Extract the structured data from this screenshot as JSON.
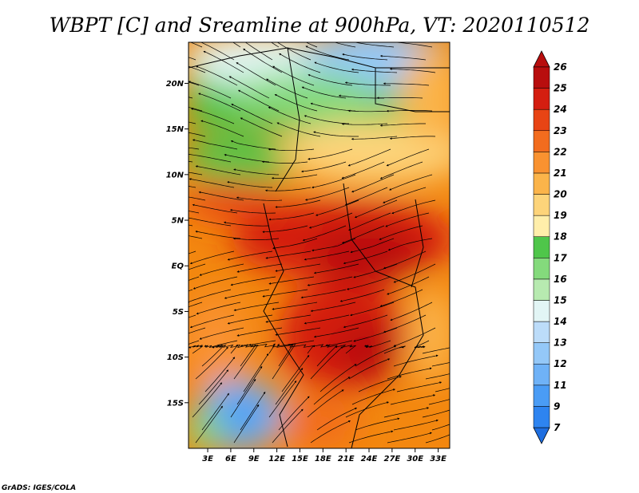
{
  "title": "WBPT [C] and Sreamline at 900hPa, VT: 2020110512",
  "credit": "GrADS: IGES/COLA",
  "map": {
    "lat_labels": [
      "20N",
      "15N",
      "10N",
      "5N",
      "EQ",
      "5S",
      "10S",
      "15S"
    ],
    "lat_values": [
      20,
      15,
      10,
      5,
      0,
      -5,
      -10,
      -15
    ],
    "lon_labels": [
      "3E",
      "6E",
      "9E",
      "12E",
      "15E",
      "18E",
      "21E",
      "24E",
      "27E",
      "30E",
      "33E"
    ],
    "lon_values": [
      3,
      6,
      9,
      12,
      15,
      18,
      21,
      24,
      27,
      30,
      33
    ],
    "lon_range": [
      0.5,
      34.5
    ],
    "lat_range": [
      -20,
      24.5
    ]
  },
  "colorbar": {
    "labels": [
      "7",
      "9",
      "11",
      "12",
      "13",
      "14",
      "15",
      "16",
      "17",
      "18",
      "19",
      "20",
      "21",
      "22",
      "23",
      "24",
      "25",
      "26"
    ],
    "colors": [
      "#1e6ee0",
      "#2e84f0",
      "#4a9cf5",
      "#6fb2f7",
      "#94c8f8",
      "#bcdcf9",
      "#e2f5f5",
      "#b7eab0",
      "#84da7c",
      "#4fc64a",
      "#ffeeaa",
      "#fdd47a",
      "#fbb44a",
      "#f99230",
      "#f26c1e",
      "#e84414",
      "#d41e10",
      "#b80e0e"
    ]
  }
}
